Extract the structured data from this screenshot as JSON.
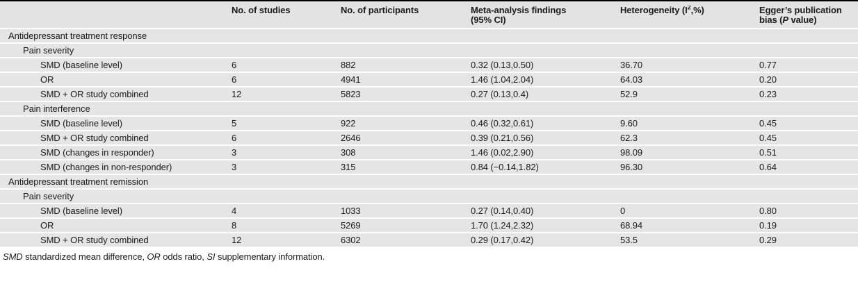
{
  "colors": {
    "page_bg": "#ffffff",
    "row_bg": "#e5e5e5",
    "header_bg": "#e3e3e3",
    "top_border": "#000000",
    "text": "#1a1a1a"
  },
  "columns": {
    "label": "",
    "studies": "No. of studies",
    "participants": "No. of participants",
    "findings_line1": "Meta-analysis findings",
    "findings_line2": "(95% CI)",
    "heterogeneity_pre": "Heterogeneity (I",
    "heterogeneity_sup": "2",
    "heterogeneity_post": ",%)",
    "egger_line1": "Egger’s publication",
    "egger_line2_pre": "bias (",
    "egger_line2_italic": "P",
    "egger_line2_post": " value)"
  },
  "rows": [
    {
      "label": "Antidepressant treatment response",
      "level": 0,
      "studies": "",
      "participants": "",
      "findings": "",
      "heterogeneity": "",
      "egger": ""
    },
    {
      "label": "Pain severity",
      "level": 1,
      "studies": "",
      "participants": "",
      "findings": "",
      "heterogeneity": "",
      "egger": ""
    },
    {
      "label": "SMD (baseline level)",
      "level": 2,
      "studies": "6",
      "participants": "882",
      "findings": "0.32 (0.13,0.50)",
      "heterogeneity": "36.70",
      "egger": "0.77"
    },
    {
      "label": "OR",
      "level": 2,
      "studies": "6",
      "participants": "4941",
      "findings": "1.46 (1.04,2.04)",
      "heterogeneity": "64.03",
      "egger": "0.20"
    },
    {
      "label": "SMD + OR study combined",
      "level": 2,
      "studies": "12",
      "participants": "5823",
      "findings": "0.27 (0.13,0.4)",
      "heterogeneity": "52.9",
      "egger": "0.23"
    },
    {
      "label": "Pain interference",
      "level": 1,
      "studies": "",
      "participants": "",
      "findings": "",
      "heterogeneity": "",
      "egger": ""
    },
    {
      "label": "SMD (baseline level)",
      "level": 2,
      "studies": "5",
      "participants": "922",
      "findings": "0.46 (0.32,0.61)",
      "heterogeneity": "9.60",
      "egger": "0.45"
    },
    {
      "label": "SMD + OR study combined",
      "level": 2,
      "studies": "6",
      "participants": "2646",
      "findings": "0.39 (0.21,0.56)",
      "heterogeneity": "62.3",
      "egger": "0.45"
    },
    {
      "label": "SMD (changes in responder)",
      "level": 2,
      "studies": "3",
      "participants": "308",
      "findings": "1.46 (0.02,2.90)",
      "heterogeneity": "98.09",
      "egger": "0.51"
    },
    {
      "label": "SMD (changes in non-responder)",
      "level": 2,
      "studies": "3",
      "participants": "315",
      "findings": "0.84 (−0.14,1.82)",
      "heterogeneity": "96.30",
      "egger": "0.64"
    },
    {
      "label": "Antidepressant treatment remission",
      "level": 0,
      "studies": "",
      "participants": "",
      "findings": "",
      "heterogeneity": "",
      "egger": ""
    },
    {
      "label": "Pain severity",
      "level": 1,
      "studies": "",
      "participants": "",
      "findings": "",
      "heterogeneity": "",
      "egger": ""
    },
    {
      "label": "SMD (baseline level)",
      "level": 2,
      "studies": "4",
      "participants": "1033",
      "findings": "0.27 (0.14,0.40)",
      "heterogeneity": "0",
      "egger": "0.80"
    },
    {
      "label": "OR",
      "level": 2,
      "studies": "8",
      "participants": "5269",
      "findings": "1.70 (1.24,2.32)",
      "heterogeneity": "68.94",
      "egger": "0.19"
    },
    {
      "label": "SMD + OR study combined",
      "level": 2,
      "studies": "12",
      "participants": "6302",
      "findings": "0.29 (0.17,0.42)",
      "heterogeneity": "53.5",
      "egger": "0.29"
    }
  ],
  "footnote": {
    "seg1_italic": "SMD",
    "seg2": " standardized mean difference, ",
    "seg3_italic": "OR",
    "seg4": " odds ratio, ",
    "seg5_italic": "SI",
    "seg6": " supplementary information."
  }
}
